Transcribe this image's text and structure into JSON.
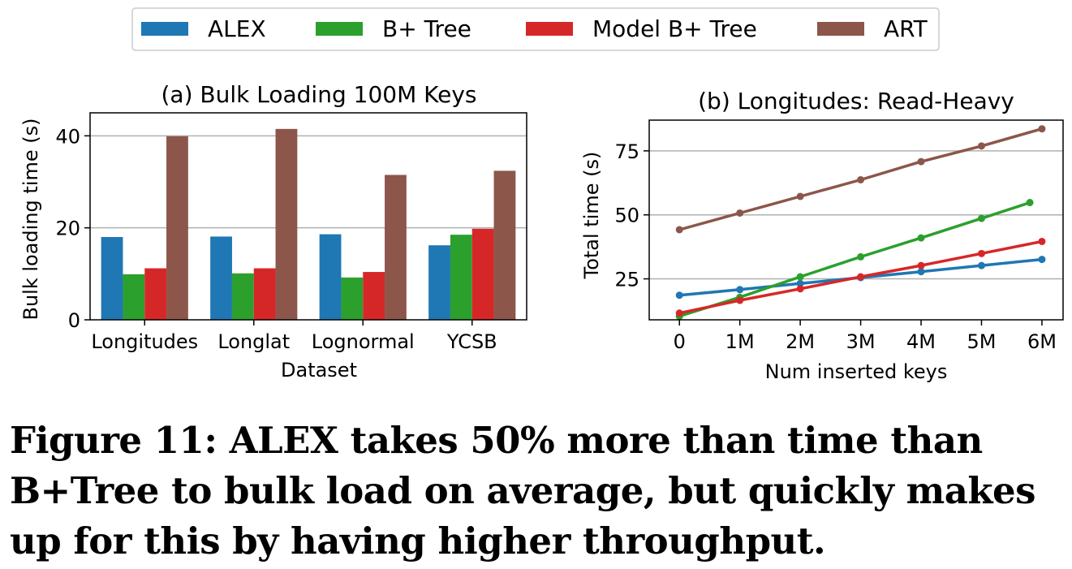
{
  "legend": [
    "ALEX",
    "B+ Tree",
    "Model B+ Tree",
    "ART"
  ],
  "colors": {
    "ALEX": "#1f77b4",
    "B+ Tree": "#2ca02c",
    "Model B+ Tree": "#d62728",
    "ART": "#8c564b"
  },
  "caption": "Figure 11: ALEX takes 50% more than time than B+Tree to bulk load on average, but quickly makes up for this by having higher throughput.",
  "chart_data": [
    {
      "type": "bar",
      "title": "(a) Bulk Loading 100M Keys",
      "xlabel": "Dataset",
      "ylabel": "Bulk loading time (s)",
      "categories": [
        "Longitudes",
        "Longlat",
        "Lognormal",
        "YCSB"
      ],
      "ylim": [
        0,
        45
      ],
      "yticks": [
        0,
        20,
        40
      ],
      "grid": true,
      "series": [
        {
          "name": "ALEX",
          "values": [
            18.0,
            18.1,
            18.6,
            16.2
          ]
        },
        {
          "name": "B+ Tree",
          "values": [
            9.9,
            10.1,
            9.2,
            18.5
          ]
        },
        {
          "name": "Model B+ Tree",
          "values": [
            11.2,
            11.2,
            10.4,
            19.8
          ]
        },
        {
          "name": "ART",
          "values": [
            39.9,
            41.5,
            31.5,
            32.4
          ]
        }
      ]
    },
    {
      "type": "line",
      "title": "(b) Longitudes: Read-Heavy",
      "xlabel": "Num inserted keys",
      "ylabel": "Total time (s)",
      "xticks": [
        "0",
        "1M",
        "2M",
        "3M",
        "4M",
        "5M",
        "6M"
      ],
      "xlim": [
        -0.5,
        6.35
      ],
      "ylim": [
        9,
        87
      ],
      "yticks": [
        25,
        50,
        75
      ],
      "grid": true,
      "series": [
        {
          "name": "ALEX",
          "x": [
            0,
            1,
            2,
            3,
            4,
            5,
            6
          ],
          "y": [
            18.6,
            20.8,
            23.2,
            25.5,
            27.8,
            30.2,
            32.6
          ]
        },
        {
          "name": "B+ Tree",
          "x": [
            0,
            1,
            2,
            3,
            4,
            5,
            5.8
          ],
          "y": [
            10.4,
            17.8,
            25.8,
            33.6,
            41.0,
            48.6,
            54.8
          ]
        },
        {
          "name": "Model B+ Tree",
          "x": [
            0,
            1,
            2,
            3,
            4,
            5,
            6
          ],
          "y": [
            11.6,
            16.6,
            21.1,
            25.8,
            30.2,
            34.9,
            39.6
          ]
        },
        {
          "name": "ART",
          "x": [
            0,
            1,
            2,
            3,
            4,
            5,
            6
          ],
          "y": [
            44.2,
            50.7,
            57.2,
            63.7,
            70.8,
            76.9,
            83.6
          ]
        }
      ]
    }
  ]
}
